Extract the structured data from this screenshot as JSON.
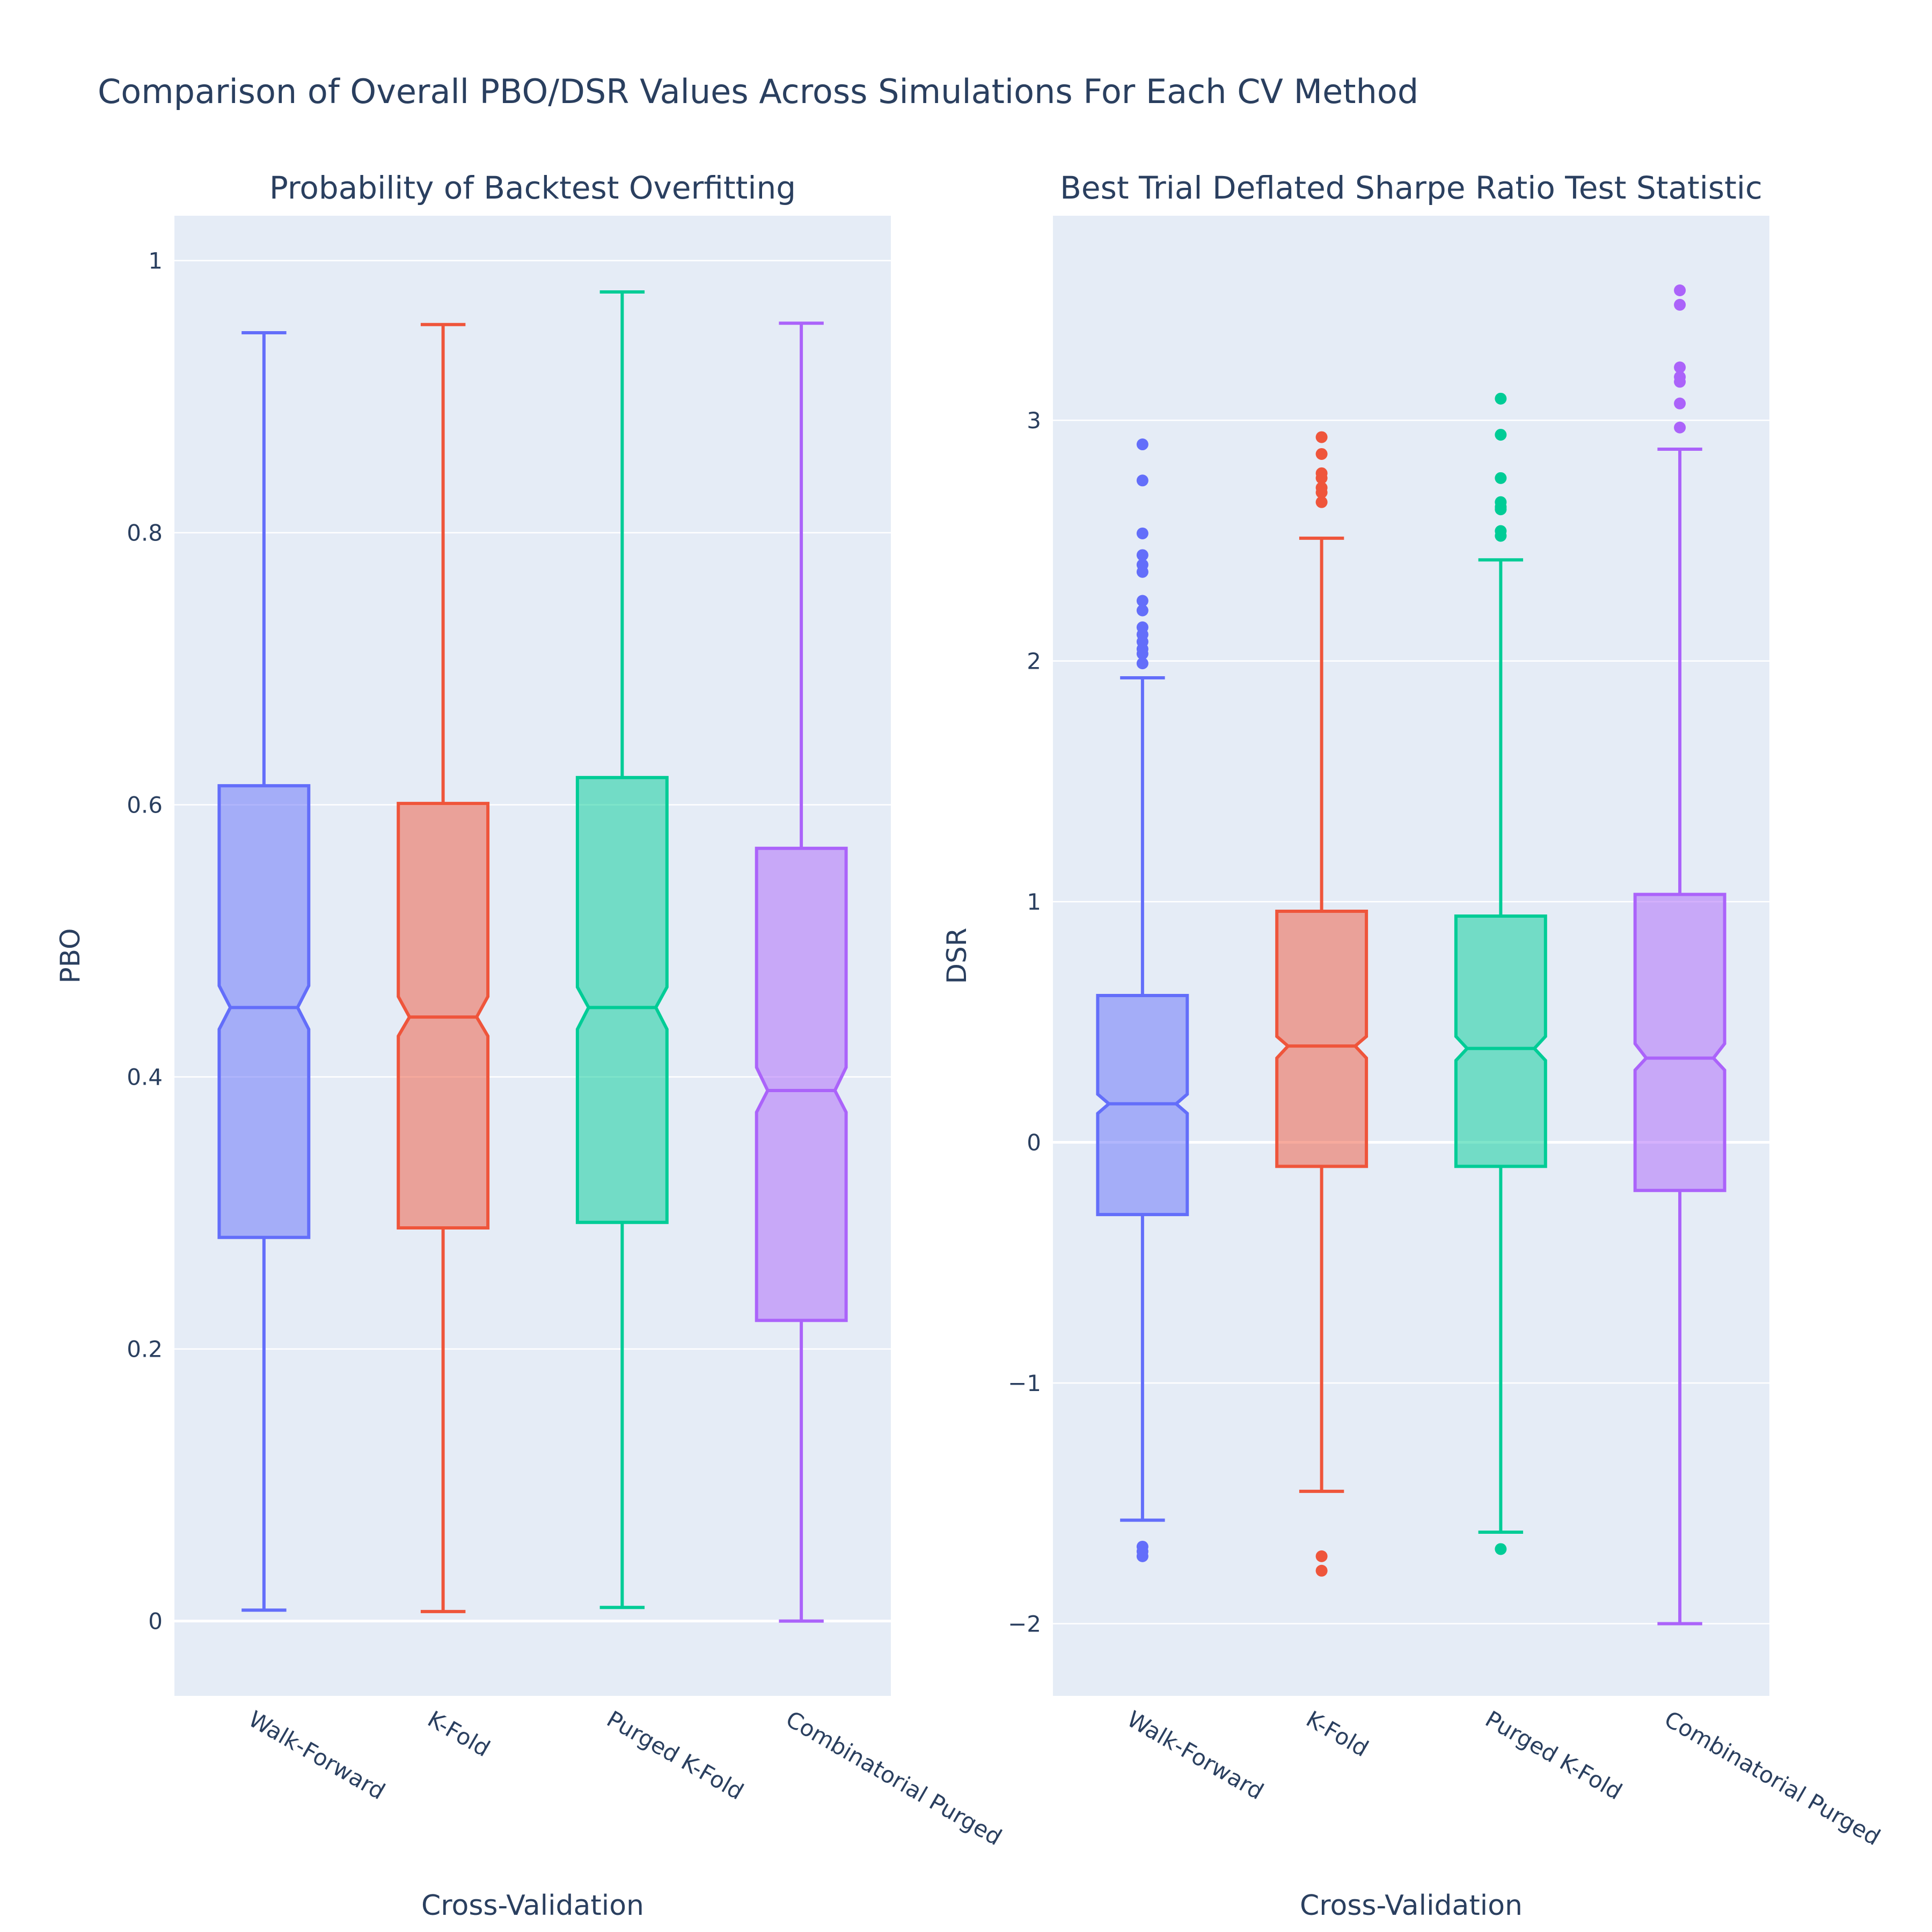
{
  "title": "Comparison of Overall PBO/DSR Values Across Simulations For Each CV Method",
  "colors": {
    "plot_bg": "#E5ECF6",
    "grid": "#FFFFFF",
    "text": "#2a3f5f",
    "series": [
      "#636EFA",
      "#EF553B",
      "#00CC96",
      "#AB63FA"
    ]
  },
  "chart_data": [
    {
      "type": "box",
      "notched": true,
      "title": "Probability of Backtest Overfitting",
      "xlabel": "Cross-Validation",
      "ylabel": "PBO",
      "ylim": [
        -0.055,
        1.033
      ],
      "yticks": [
        0,
        0.2,
        0.4,
        0.6,
        0.8,
        1
      ],
      "ytick_labels": [
        "0",
        "0.2",
        "0.4",
        "0.6",
        "0.8",
        "1"
      ],
      "categories": [
        "Walk-Forward",
        "K-Fold",
        "Purged K-Fold",
        "Combinatorial Purged"
      ],
      "boxes": [
        {
          "name": "Walk-Forward",
          "lower_fence": 0.008,
          "q1": 0.282,
          "notch_low": 0.435,
          "median": 0.451,
          "notch_high": 0.467,
          "q3": 0.614,
          "upper_fence": 0.947,
          "outliers": []
        },
        {
          "name": "K-Fold",
          "lower_fence": 0.007,
          "q1": 0.289,
          "notch_low": 0.43,
          "median": 0.444,
          "notch_high": 0.459,
          "q3": 0.601,
          "upper_fence": 0.953,
          "outliers": []
        },
        {
          "name": "Purged K-Fold",
          "lower_fence": 0.01,
          "q1": 0.293,
          "notch_low": 0.435,
          "median": 0.451,
          "notch_high": 0.466,
          "q3": 0.62,
          "upper_fence": 0.977,
          "outliers": []
        },
        {
          "name": "Combinatorial Purged",
          "lower_fence": 0.0,
          "q1": 0.221,
          "notch_low": 0.374,
          "median": 0.39,
          "notch_high": 0.407,
          "q3": 0.568,
          "upper_fence": 0.954,
          "outliers": []
        }
      ]
    },
    {
      "type": "box",
      "notched": true,
      "title": "Best Trial Deflated Sharpe Ratio Test Statistic",
      "xlabel": "Cross-Validation",
      "ylabel": "DSR",
      "ylim": [
        -2.3,
        3.85
      ],
      "yticks": [
        -2,
        -1,
        0,
        1,
        2,
        3
      ],
      "ytick_labels": [
        "−2",
        "−1",
        "0",
        "1",
        "2",
        "3"
      ],
      "categories": [
        "Walk-Forward",
        "K-Fold",
        "Purged K-Fold",
        "Combinatorial Purged"
      ],
      "boxes": [
        {
          "name": "Walk-Forward",
          "lower_fence": -1.57,
          "q1": -0.3,
          "notch_low": 0.12,
          "median": 0.16,
          "notch_high": 0.2,
          "q3": 0.61,
          "upper_fence": 1.93,
          "outliers": [
            2.9,
            2.75,
            2.53,
            2.44,
            2.4,
            2.37,
            2.25,
            2.21,
            2.14,
            2.11,
            2.08,
            2.05,
            2.03,
            1.99,
            -1.68,
            -1.7,
            -1.72
          ]
        },
        {
          "name": "K-Fold",
          "lower_fence": -1.45,
          "q1": -0.1,
          "notch_low": 0.35,
          "median": 0.4,
          "notch_high": 0.44,
          "q3": 0.96,
          "upper_fence": 2.51,
          "outliers": [
            2.93,
            2.86,
            2.78,
            2.76,
            2.72,
            2.7,
            2.66,
            -1.72,
            -1.78
          ]
        },
        {
          "name": "Purged K-Fold",
          "lower_fence": -1.62,
          "q1": -0.1,
          "notch_low": 0.34,
          "median": 0.39,
          "notch_high": 0.44,
          "q3": 0.94,
          "upper_fence": 2.42,
          "outliers": [
            3.09,
            2.94,
            2.76,
            2.66,
            2.64,
            2.63,
            2.54,
            2.52,
            -1.69
          ]
        },
        {
          "name": "Combinatorial Purged",
          "lower_fence": -2.0,
          "q1": -0.2,
          "notch_low": 0.3,
          "median": 0.35,
          "notch_high": 0.41,
          "q3": 1.03,
          "upper_fence": 2.88,
          "outliers": [
            3.54,
            3.48,
            3.22,
            3.18,
            3.16,
            3.07,
            2.97
          ]
        }
      ]
    }
  ]
}
